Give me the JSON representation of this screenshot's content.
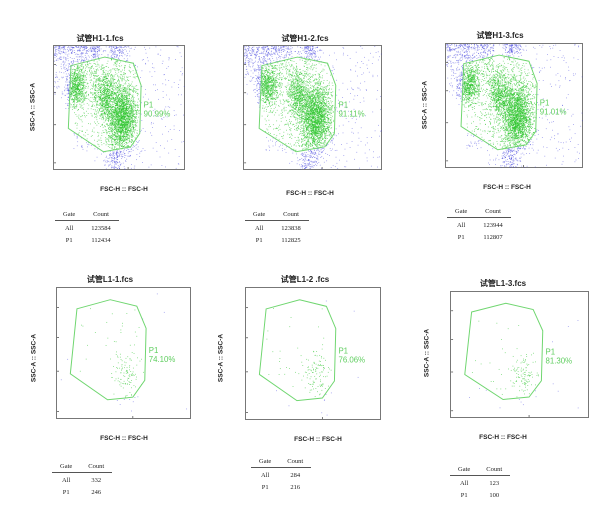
{
  "colors": {
    "gate": "#6fd66f",
    "cells_in_gate": "#2ec52e",
    "cells_outside": "#3b3bdc",
    "frame": "#777777"
  },
  "chart_data": [
    {
      "type": "scatter",
      "title": "试管H1-1.fcs",
      "xlabel": "FSC-H :: FSC-H",
      "ylabel": "SSC-A :: SSC-A",
      "gate": {
        "name": "P1",
        "percent": "90.99%"
      },
      "table": {
        "headers": [
          "Gate",
          "Count"
        ],
        "rows": [
          [
            "All",
            "123584"
          ],
          [
            "P1",
            "112434"
          ]
        ]
      }
    },
    {
      "type": "scatter",
      "title": "试管H1-2.fcs",
      "xlabel": "FSC-H :: FSC-H",
      "ylabel": "",
      "gate": {
        "name": "P1",
        "percent": "91.11%"
      },
      "table": {
        "headers": [
          "Gate",
          "Count"
        ],
        "rows": [
          [
            "All",
            "123838"
          ],
          [
            "P1",
            "112825"
          ]
        ]
      }
    },
    {
      "type": "scatter",
      "title": "试管H1-3.fcs",
      "xlabel": "FSC-H :: FSC-H",
      "ylabel": "SSC-A :: SSC-A",
      "gate": {
        "name": "P1",
        "percent": "91.01%"
      },
      "table": {
        "headers": [
          "Gate",
          "Count"
        ],
        "rows": [
          [
            "All",
            "123944"
          ],
          [
            "P1",
            "112807"
          ]
        ]
      }
    },
    {
      "type": "scatter",
      "title": "试管L1-1.fcs",
      "xlabel": "FSC-H :: FSC-H",
      "ylabel": "SSC-A :: SSC-A",
      "gate": {
        "name": "P1",
        "percent": "74.10%"
      },
      "table": {
        "headers": [
          "Gate",
          "Count"
        ],
        "rows": [
          [
            "All",
            "332"
          ],
          [
            "P1",
            "246"
          ]
        ]
      }
    },
    {
      "type": "scatter",
      "title": "试管L1-2 .fcs",
      "xlabel": "FSC-H :: FSC-H",
      "ylabel": "SSC-A :: SSC-A",
      "gate": {
        "name": "P1",
        "percent": "76.06%"
      },
      "table": {
        "headers": [
          "Gate",
          "Count"
        ],
        "rows": [
          [
            "All",
            "284"
          ],
          [
            "P1",
            "216"
          ]
        ]
      }
    },
    {
      "type": "scatter",
      "title": "试管L1-3.fcs",
      "xlabel": "FSC-H :: FSC-H",
      "ylabel": "SSC-A :: SSC-A",
      "gate": {
        "name": "P1",
        "percent": "81.30%"
      },
      "table": {
        "headers": [
          "Gate",
          "Count"
        ],
        "rows": [
          [
            "All",
            "123"
          ],
          [
            "P1",
            "100"
          ]
        ]
      }
    }
  ]
}
